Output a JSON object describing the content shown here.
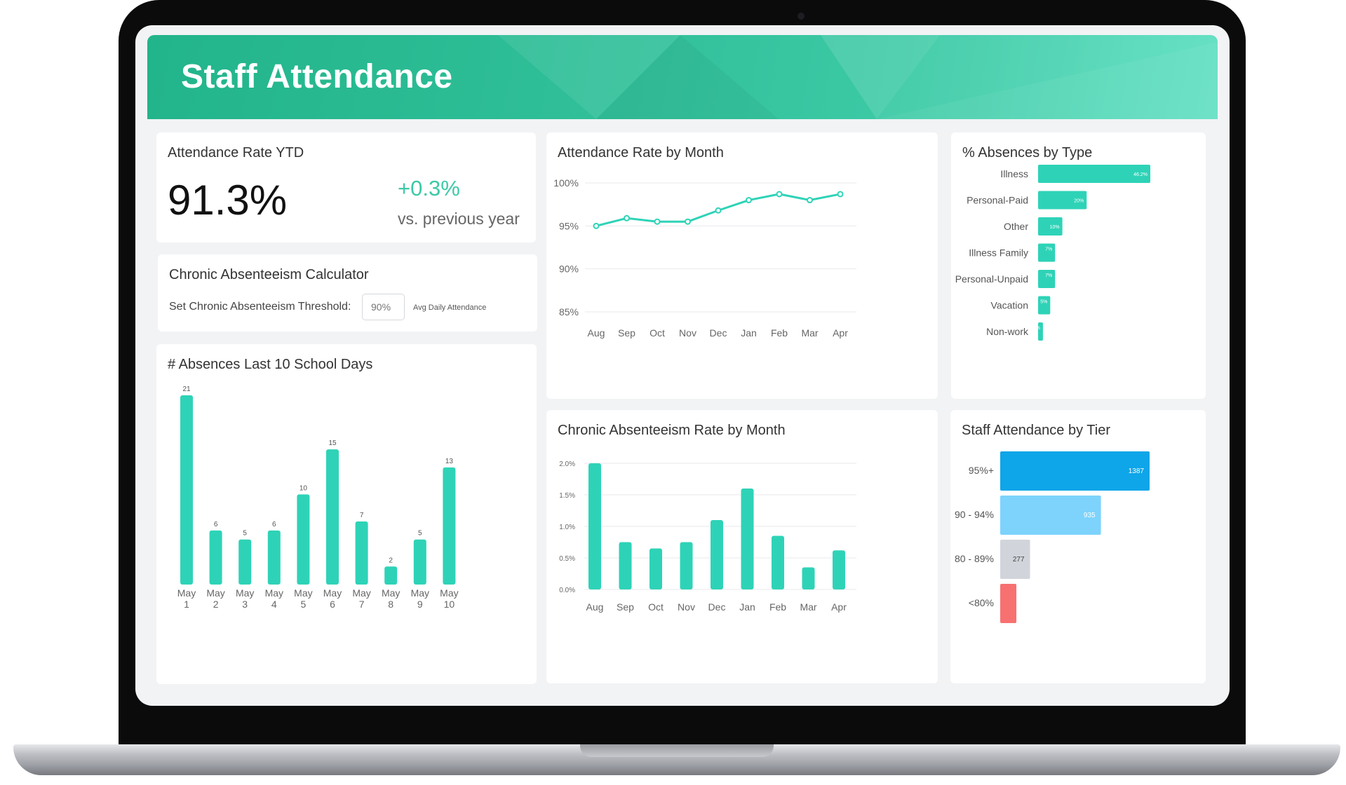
{
  "header": {
    "title": "Staff Attendance"
  },
  "kpi": {
    "title": "Attendance Rate YTD",
    "value": "91.3%",
    "delta": "+0.3%",
    "delta_label": "vs. previous year"
  },
  "calculator": {
    "title": "Chronic Absenteeism Calculator",
    "label": "Set Chronic Absenteeism Threshold:",
    "placeholder": "90%",
    "note": "Avg Daily Attendance"
  },
  "colors": {
    "accent": "#2ed3b7",
    "tier_95": "#0ea5e9",
    "tier_90": "#7dd3fc",
    "tier_80": "#d1d5db",
    "tier_below": "#f87171"
  },
  "chart_data": [
    {
      "id": "absences_10_days",
      "type": "bar",
      "title": "# Absences Last 10 School Days",
      "categories": [
        [
          "May",
          "1"
        ],
        [
          "May",
          "2"
        ],
        [
          "May",
          "3"
        ],
        [
          "May",
          "4"
        ],
        [
          "May",
          "5"
        ],
        [
          "May",
          "6"
        ],
        [
          "May",
          "7"
        ],
        [
          "May",
          "8"
        ],
        [
          "May",
          "9"
        ],
        [
          "May",
          "10"
        ]
      ],
      "values": [
        21,
        6,
        5,
        6,
        10,
        15,
        7,
        2,
        5,
        13
      ],
      "ylim": [
        0,
        21
      ],
      "grid": false
    },
    {
      "id": "attendance_by_month",
      "type": "line",
      "title": "Attendance Rate by Month",
      "categories": [
        "Aug",
        "Sep",
        "Oct",
        "Nov",
        "Dec",
        "Jan",
        "Feb",
        "Mar",
        "Apr"
      ],
      "values": [
        95.0,
        95.9,
        95.5,
        95.5,
        96.8,
        98.0,
        98.7,
        98.0,
        98.7
      ],
      "yticks": [
        {
          "v": 100,
          "label": "100%"
        },
        {
          "v": 95,
          "label": "95%"
        },
        {
          "v": 90,
          "label": "90%"
        },
        {
          "v": 85,
          "label": "85%"
        }
      ],
      "ylim": [
        85,
        100
      ],
      "grid": true
    },
    {
      "id": "chronic_rate_by_month",
      "type": "bar",
      "title": "Chronic Absenteeism Rate by Month",
      "categories": [
        "Aug",
        "Sep",
        "Oct",
        "Nov",
        "Dec",
        "Jan",
        "Feb",
        "Mar",
        "Apr"
      ],
      "values": [
        2.0,
        0.75,
        0.65,
        0.75,
        1.1,
        1.6,
        0.85,
        0.35,
        0.62
      ],
      "yticks": [
        {
          "v": 2.0,
          "label": "2.0%"
        },
        {
          "v": 1.5,
          "label": "1.5%"
        },
        {
          "v": 1.0,
          "label": "1.0%"
        },
        {
          "v": 0.5,
          "label": "0.5%"
        },
        {
          "v": 0.0,
          "label": "0.0%"
        }
      ],
      "ylim": [
        0,
        2.0
      ],
      "grid": true
    },
    {
      "id": "absences_by_type",
      "type": "bar",
      "orientation": "horizontal",
      "title": "% Absences by Type",
      "categories": [
        "Illness",
        "Personal-Paid",
        "Other",
        "Illness Family",
        "Personal-Unpaid",
        "Vacation",
        "Non-work"
      ],
      "values": [
        46.2,
        20,
        10,
        7,
        7,
        5,
        2
      ],
      "labels": [
        "46.2%",
        "20%",
        "10%",
        "7%",
        "7%",
        "5%",
        "2%"
      ],
      "xlim": [
        0,
        46.2
      ]
    },
    {
      "id": "attendance_by_tier",
      "type": "bar",
      "orientation": "horizontal",
      "title": "Staff Attendance by Tier",
      "categories": [
        "95%+",
        "90 - 94%",
        "80 - 89%",
        "<80%"
      ],
      "values": [
        1387,
        935,
        277,
        150
      ],
      "labels": [
        "1387",
        "935",
        "277",
        ""
      ],
      "colors": [
        "#0ea5e9",
        "#7dd3fc",
        "#d1d5db",
        "#f87171"
      ],
      "xlim": [
        0,
        1387
      ]
    }
  ]
}
